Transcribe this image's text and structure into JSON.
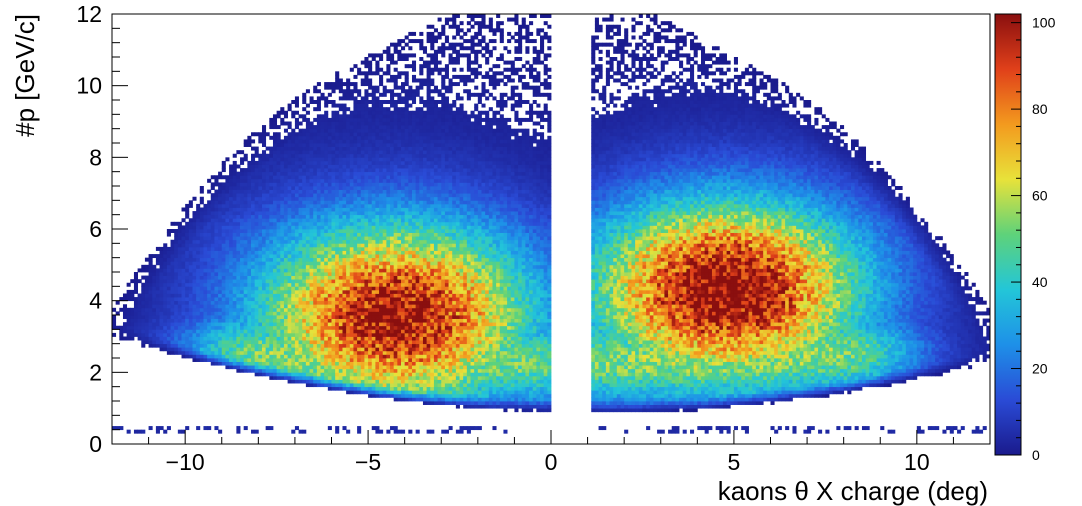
{
  "chart_data": {
    "type": "heatmap",
    "title": "",
    "xlabel": "kaons θ X charge (deg)",
    "ylabel": "#p [GeV/c]",
    "xlim": [
      -12,
      12
    ],
    "ylim": [
      0,
      12
    ],
    "x_ticks": [
      "−10",
      "−5",
      "0",
      "5",
      "10"
    ],
    "x_tick_values": [
      -10,
      -5,
      0,
      5,
      10
    ],
    "y_ticks": [
      "0",
      "2",
      "4",
      "6",
      "8",
      "10",
      "12"
    ],
    "y_tick_values": [
      0,
      2,
      4,
      6,
      8,
      10,
      12
    ],
    "z_range": [
      0,
      102
    ],
    "z_ticks": [
      "0",
      "20",
      "40",
      "60",
      "80",
      "100"
    ],
    "z_tick_values": [
      0,
      20,
      40,
      60,
      80,
      100
    ],
    "colormap": [
      "#1a1a8c",
      "#2a4bd6",
      "#1e90e8",
      "#23c6d8",
      "#5ed27a",
      "#e8e23a",
      "#f39a1e",
      "#e0401a",
      "#8a0f0f"
    ],
    "binning": {
      "x_bins": 240,
      "y_bins": 120
    },
    "lobes": [
      {
        "name_side": "negative",
        "x_gap_edge": -1.4,
        "peak_x": -4.2,
        "peak_y": 3.6,
        "peak_counts": 90
      },
      {
        "name_side": "positive",
        "x_gap_edge": 1.1,
        "peak_x": 4.8,
        "peak_y": 4.3,
        "peak_counts": 95
      }
    ],
    "grid": false,
    "legend": "colorbar-right"
  }
}
